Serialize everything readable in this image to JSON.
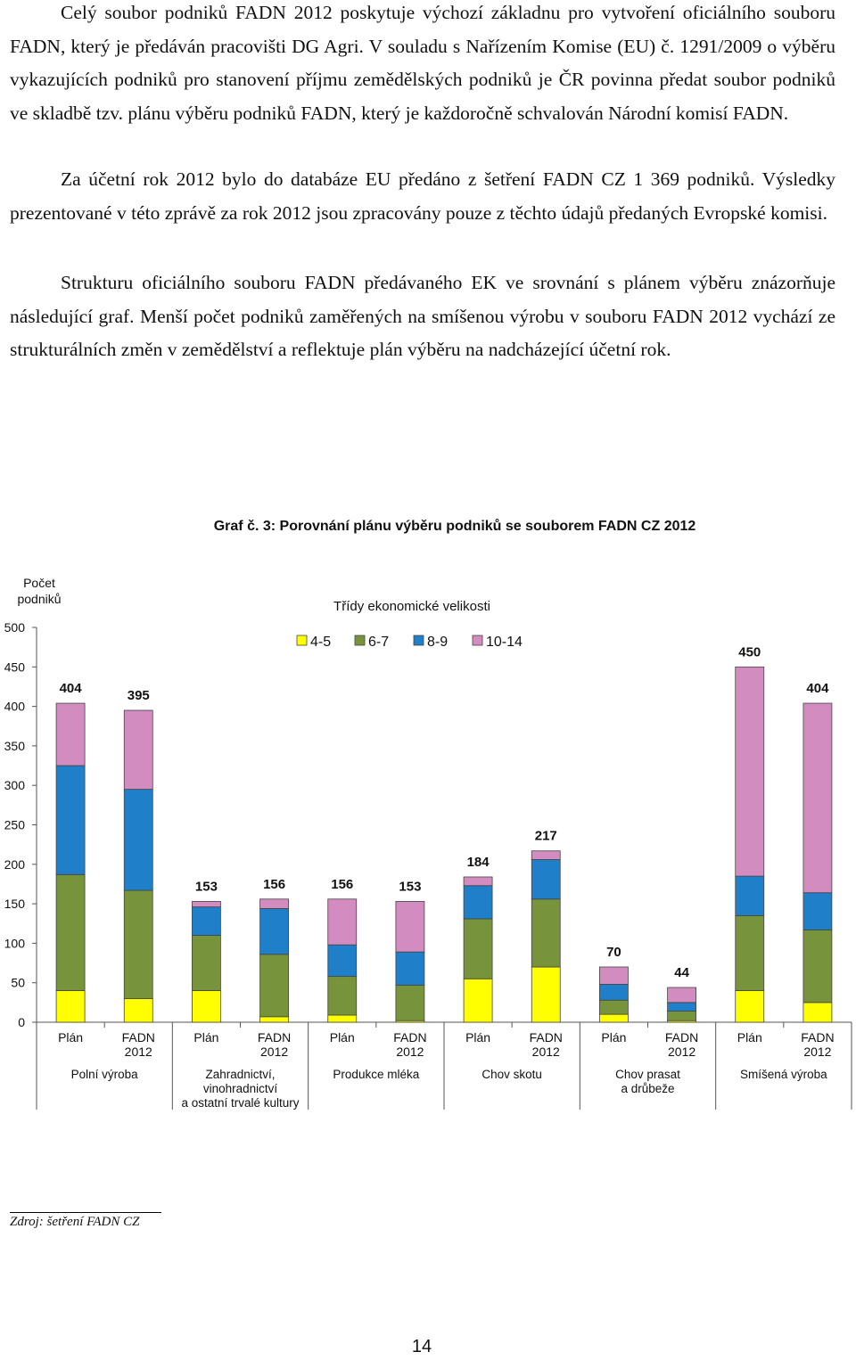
{
  "paragraphs": [
    "Celý soubor podniků FADN 2012 poskytuje výchozí základnu pro vytvoření oficiálního souboru FADN, který je předáván pracovišti DG Agri. V souladu s Nařízením Komise (EU) č. 1291/2009 o výběru vykazujících podniků pro stanovení příjmu zemědělských podniků je ČR povinna předat soubor podniků ve skladbě tzv. plánu výběru podniků FADN, který je každoročně schvalován Národní komisí FADN.",
    "Za účetní rok 2012 bylo do databáze EU předáno z šetření FADN CZ 1 369 podniků. Výsledky prezentované v této zprávě za rok 2012 jsou zpracovány pouze z těchto údajů předaných Evropské komisi.",
    "Strukturu oficiálního souboru FADN předávaného EK ve srovnání s plánem výběru znázorňuje následující graf. Menší počet podniků zaměřených na smíšenou výrobu v souboru FADN 2012 vychází ze strukturálních změn v zemědělství a reflektuje plán výběru na nadcházející účetní rok."
  ],
  "chart_title": "Graf č. 3: Porovnání plánu výběru podniků se souborem FADN CZ 2012",
  "chart_data": {
    "type": "bar",
    "stacked": true,
    "ylabel": "Počet podniků",
    "legend_title": "Třídy ekonomické velikosti",
    "legend_position": "top-center",
    "ylim": [
      0,
      500
    ],
    "yticks": [
      0,
      50,
      100,
      150,
      200,
      250,
      300,
      350,
      400,
      450,
      500
    ],
    "grid": false,
    "categories": [
      "Plán",
      "FADN 2012",
      "Plán",
      "FADN 2012",
      "Plán",
      "FADN 2012",
      "Plán",
      "FADN 2012",
      "Plán",
      "FADN 2012",
      "Plán",
      "FADN 2012"
    ],
    "groups": [
      "Polní výroba",
      "Zahradnictví, vinohradnictví a ostatní trvalé kultury",
      "Produkce mléka",
      "Chov skotu",
      "Chov prasat a drůbeže",
      "Smíšená výroba"
    ],
    "series": [
      {
        "name": "4-5",
        "color": "#FFFF00",
        "values": [
          40,
          30,
          40,
          7,
          9,
          2,
          55,
          70,
          10,
          2,
          40,
          25
        ]
      },
      {
        "name": "6-7",
        "color": "#77933C",
        "values": [
          147,
          137,
          70,
          79,
          49,
          45,
          76,
          86,
          18,
          12,
          95,
          92
        ]
      },
      {
        "name": "8-9",
        "color": "#1F7FC8",
        "values": [
          138,
          128,
          36,
          58,
          40,
          42,
          42,
          50,
          20,
          11,
          50,
          47
        ]
      },
      {
        "name": "10-14",
        "color": "#D38CC0",
        "values": [
          79,
          100,
          7,
          12,
          58,
          64,
          11,
          11,
          22,
          19,
          265,
          240
        ]
      }
    ],
    "totals": [
      404,
      395,
      153,
      156,
      156,
      153,
      184,
      217,
      70,
      44,
      450,
      404
    ]
  },
  "source": "Zdroj: šetření FADN CZ",
  "page_number": "14"
}
